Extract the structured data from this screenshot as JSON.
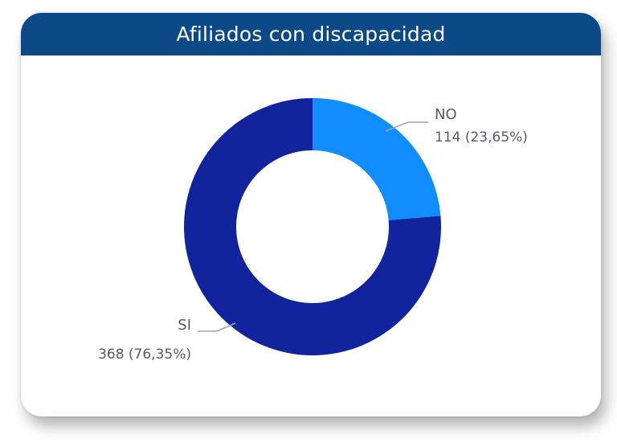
{
  "title": "Afiliados con discapacidad",
  "chart_data": {
    "type": "pie",
    "variant": "donut",
    "title": "Afiliados con discapacidad",
    "slices": [
      {
        "label": "NO",
        "value": 114,
        "percent_label": "114 (23,65%)",
        "color": "#118dff"
      },
      {
        "label": "SI",
        "value": 368,
        "percent_label": "368 (76,35%)",
        "color": "#12239e"
      }
    ],
    "legend": "none",
    "data_labels": "outside-with-leader-lines"
  },
  "colors": {
    "header_bg": "#0b4a86",
    "label_text": "#555a66",
    "leader_line": "#a0a4ad"
  }
}
